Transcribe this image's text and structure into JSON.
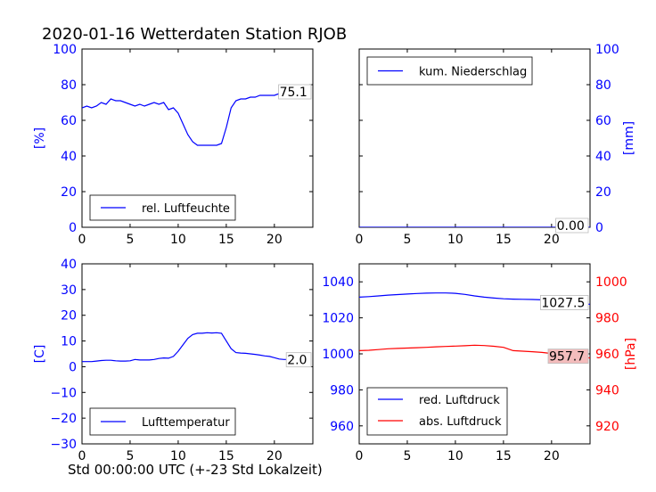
{
  "figure": {
    "title": "2020-01-16 Wetterdaten Station RJOB",
    "xlabel": "Std 00:00:00 UTC (+-23 Std Lokalzeit)"
  },
  "chart_data": [
    {
      "type": "line",
      "panel": "top-left",
      "ylabel": "[%]",
      "ylabel_side": "left",
      "ylabel_color": "#0000ff",
      "xlim": [
        0,
        24
      ],
      "ylim": [
        0,
        100
      ],
      "xticks": [
        "0",
        "5",
        "10",
        "15",
        "20"
      ],
      "yticks": [
        "0",
        "20",
        "40",
        "60",
        "80",
        "100"
      ],
      "legend_position": "lower-left",
      "series": [
        {
          "name": "rel. Luftfeuchte",
          "color": "#0000ff",
          "x": [
            0,
            0.5,
            1,
            1.5,
            2,
            2.5,
            3,
            3.5,
            4,
            4.5,
            5,
            5.5,
            6,
            6.5,
            7,
            7.5,
            8,
            8.5,
            9,
            9.5,
            10,
            10.5,
            11,
            11.5,
            12,
            12.5,
            13,
            13.5,
            14,
            14.5,
            15,
            15.5,
            16,
            16.5,
            17,
            17.5,
            18,
            18.5,
            19,
            19.5,
            20,
            20.5,
            21,
            21.5,
            22,
            22.5,
            23,
            23.5
          ],
          "y": [
            67,
            68,
            67,
            68,
            70,
            69,
            72,
            71,
            71,
            70,
            69,
            68,
            69,
            68,
            69,
            70,
            69,
            70,
            66,
            67,
            64,
            58,
            52,
            48,
            46,
            46,
            46,
            46,
            46,
            47,
            56,
            67,
            71,
            72,
            72,
            73,
            73,
            74,
            74,
            74,
            74,
            75,
            75,
            75,
            75,
            75,
            75,
            75
          ]
        }
      ],
      "end_label": "75.1"
    },
    {
      "type": "line",
      "panel": "top-right",
      "ylabel": "[mm]",
      "ylabel_side": "right",
      "ylabel_color": "#0000ff",
      "xlim": [
        0,
        24
      ],
      "ylim": [
        0,
        100
      ],
      "xticks": [
        "0",
        "5",
        "10",
        "15",
        "20"
      ],
      "yticks": [
        "0",
        "20",
        "40",
        "60",
        "80",
        "100"
      ],
      "legend_position": "top-left",
      "series": [
        {
          "name": "kum. Niederschlag",
          "color": "#0000ff",
          "x": [
            0,
            24
          ],
          "y": [
            0,
            0
          ]
        }
      ],
      "end_label": "0.00"
    },
    {
      "type": "line",
      "panel": "bottom-left",
      "ylabel": "[C]",
      "ylabel_side": "left",
      "ylabel_color": "#0000ff",
      "xlim": [
        0,
        24
      ],
      "ylim": [
        -30,
        40
      ],
      "xticks": [
        "0",
        "5",
        "10",
        "15",
        "20"
      ],
      "yticks": [
        "−30",
        "−20",
        "−10",
        "0",
        "10",
        "20",
        "30",
        "40"
      ],
      "legend_position": "lower-left",
      "series": [
        {
          "name": "Lufttemperatur",
          "color": "#0000ff",
          "x": [
            0,
            0.5,
            1,
            1.5,
            2,
            2.5,
            3,
            3.5,
            4,
            4.5,
            5,
            5.5,
            6,
            6.5,
            7,
            7.5,
            8,
            8.5,
            9,
            9.5,
            10,
            10.5,
            11,
            11.5,
            12,
            12.5,
            13,
            13.5,
            14,
            14.5,
            15,
            15.5,
            16,
            16.5,
            17,
            17.5,
            18,
            18.5,
            19,
            19.5,
            20,
            20.5,
            21,
            21.5,
            22,
            22.5,
            23,
            23.5
          ],
          "y": [
            2,
            2,
            2,
            2.2,
            2.4,
            2.5,
            2.5,
            2.3,
            2.2,
            2.2,
            2.3,
            2.8,
            2.6,
            2.6,
            2.6,
            2.8,
            3.2,
            3.4,
            3.3,
            4,
            6,
            8.5,
            11,
            12.5,
            13,
            13,
            13.2,
            13.1,
            13.2,
            13,
            10,
            7,
            5.5,
            5.3,
            5.2,
            5,
            4.8,
            4.5,
            4.2,
            4,
            3.5,
            3,
            2.8,
            2.8,
            2.7,
            2.5,
            2.3,
            2
          ]
        }
      ],
      "end_label": "2.0"
    },
    {
      "type": "line",
      "panel": "bottom-right",
      "ylabel": "[hPa]",
      "ylabel_side": "right",
      "ylabel_color": "#ff0000",
      "xlim": [
        0,
        24
      ],
      "ylim_left": [
        950,
        1050
      ],
      "ylim_right": [
        910,
        1010
      ],
      "xticks": [
        "0",
        "5",
        "10",
        "15",
        "20"
      ],
      "yticks_left": [
        "960",
        "980",
        "1000",
        "1020",
        "1040"
      ],
      "yticks_right": [
        "920",
        "940",
        "960",
        "980",
        "1000"
      ],
      "legend_position": "lower-left",
      "series": [
        {
          "name": "red. Luftdruck",
          "color": "#0000ff",
          "axis": "left",
          "x": [
            0,
            1,
            2,
            3,
            4,
            5,
            6,
            7,
            8,
            9,
            10,
            11,
            12,
            13,
            14,
            15,
            16,
            17,
            18,
            19,
            20,
            21,
            22,
            23,
            24
          ],
          "y": [
            1031.5,
            1031.8,
            1032.2,
            1032.6,
            1032.9,
            1033.2,
            1033.5,
            1033.7,
            1033.8,
            1033.8,
            1033.6,
            1033,
            1032.2,
            1031.5,
            1031,
            1030.6,
            1030.4,
            1030.3,
            1030.2,
            1030.0,
            1029.6,
            1029.0,
            1028.4,
            1027.8,
            1027.5
          ]
        },
        {
          "name": "abs. Luftdruck",
          "color": "#ff0000",
          "axis": "right",
          "x": [
            0,
            1,
            2,
            3,
            4,
            5,
            6,
            7,
            8,
            9,
            10,
            11,
            12,
            13,
            14,
            15,
            16,
            17,
            18,
            19,
            20,
            21,
            22,
            23,
            24
          ],
          "y": [
            961.8,
            962.0,
            962.4,
            962.8,
            963.0,
            963.2,
            963.4,
            963.6,
            963.9,
            964.1,
            964.3,
            964.5,
            964.8,
            964.6,
            964.2,
            963.6,
            961.8,
            961.5,
            961.2,
            960.8,
            960.2,
            959.6,
            959.0,
            958.3,
            957.7
          ]
        }
      ],
      "end_labels": [
        "1027.5",
        "957.7"
      ]
    }
  ]
}
